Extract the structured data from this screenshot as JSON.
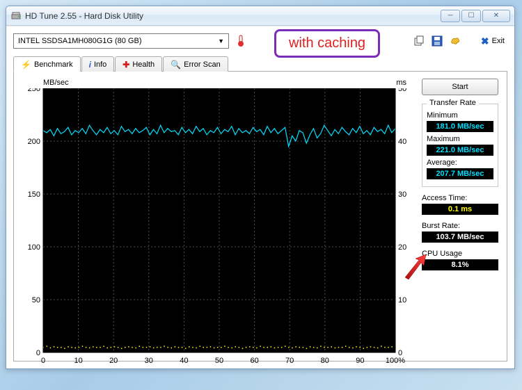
{
  "window": {
    "title": "HD Tune 2.55 - Hard Disk Utility"
  },
  "toolbar": {
    "drive": "INTEL SSDSA1MH080G1G (80 GB)",
    "exit_label": "Exit"
  },
  "annotation": {
    "text": "with caching"
  },
  "tabs": {
    "benchmark": "Benchmark",
    "info": "Info",
    "health": "Health",
    "error": "Error Scan"
  },
  "chart": {
    "y_left_label": "MB/sec",
    "y_right_label": "ms",
    "y_left_max": 250,
    "y_left_ticks": [
      0,
      50,
      100,
      150,
      200,
      250
    ],
    "y_right_max": 50,
    "y_right_ticks": [
      0,
      10,
      20,
      30,
      40,
      50
    ],
    "x_ticks": [
      "0",
      "10",
      "20",
      "30",
      "40",
      "50",
      "60",
      "70",
      "80",
      "90",
      "100%"
    ],
    "bg_color": "#000000",
    "grid_color": "#505050",
    "transfer_color": "#00dfff",
    "access_color": "#ffff00",
    "transfer_series": [
      210,
      208,
      211,
      205,
      212,
      207,
      209,
      213,
      206,
      210,
      208,
      212,
      207,
      215,
      210,
      206,
      211,
      208,
      213,
      207,
      210,
      206,
      214,
      209,
      211,
      207,
      212,
      208,
      210,
      213,
      206,
      211,
      207,
      215,
      208,
      212,
      209,
      210,
      206,
      213,
      208,
      211,
      207,
      214,
      209,
      212,
      206,
      210,
      208,
      213,
      207,
      211,
      209,
      214,
      206,
      212,
      208,
      210,
      207,
      213,
      209,
      211,
      206,
      214,
      208,
      212,
      207,
      210,
      213,
      195,
      205,
      200,
      210,
      208,
      198,
      206,
      212,
      203,
      207,
      215,
      210,
      205,
      211,
      207,
      213,
      209,
      206,
      212,
      208,
      214,
      207,
      210,
      206,
      213,
      209,
      211,
      207,
      215,
      208,
      212
    ],
    "access_series": [
      1.0,
      1.2,
      0.9,
      1.1,
      1.0,
      1.0,
      0.8,
      1.1,
      1.0,
      0.9,
      1.0,
      1.2,
      1.0,
      0.9,
      1.1,
      1.0,
      1.0,
      1.2,
      0.9,
      1.0,
      1.1,
      1.0,
      0.8,
      1.0,
      1.1,
      1.0,
      0.9,
      1.2,
      1.0,
      1.0,
      1.1,
      0.9,
      1.0,
      1.0,
      1.2,
      1.0,
      0.9,
      1.1,
      1.0,
      1.0,
      0.8,
      1.1,
      1.0,
      0.9,
      1.2,
      1.0,
      1.0,
      1.1,
      0.9,
      1.0,
      1.0,
      1.2,
      1.0,
      0.9,
      1.1,
      1.0,
      0.8,
      1.0,
      1.1,
      1.0,
      0.9,
      1.2,
      1.0,
      1.0,
      1.1,
      0.9,
      1.0,
      1.0,
      1.2,
      1.0,
      0.9,
      1.1,
      1.0,
      1.0,
      0.8,
      1.1,
      1.0,
      0.9,
      1.2,
      1.0,
      1.0,
      1.1,
      0.9,
      1.0,
      1.0,
      1.2,
      1.0,
      0.9,
      1.1,
      1.0,
      0.8,
      1.0,
      1.1,
      1.0,
      0.9,
      1.2,
      1.0,
      1.0,
      1.1,
      0.9
    ]
  },
  "stats": {
    "start_label": "Start",
    "transfer_rate_label": "Transfer Rate",
    "min_label": "Minimum",
    "min_value": "181.0 MB/sec",
    "max_label": "Maximum",
    "max_value": "221.0 MB/sec",
    "avg_label": "Average:",
    "avg_value": "207.7 MB/sec",
    "access_label": "Access Time:",
    "access_value": "0.1 ms",
    "burst_label": "Burst Rate:",
    "burst_value": "103.7 MB/sec",
    "cpu_label": "CPU Usage",
    "cpu_value": "8.1%"
  }
}
